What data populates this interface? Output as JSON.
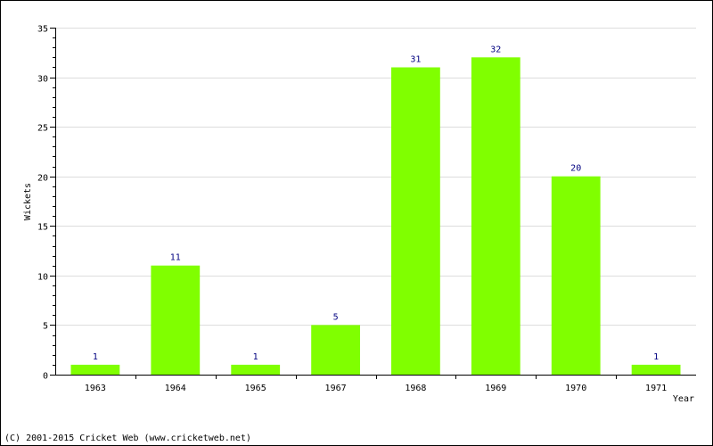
{
  "chart_data": {
    "type": "bar",
    "categories": [
      "1963",
      "1964",
      "1965",
      "1967",
      "1968",
      "1969",
      "1970",
      "1971"
    ],
    "values": [
      1,
      11,
      1,
      5,
      31,
      32,
      20,
      1
    ],
    "data_labels": [
      "1",
      "11",
      "1",
      "5",
      "31",
      "32",
      "20",
      "1"
    ],
    "xlabel": "Year",
    "ylabel": "Wickets",
    "ylim": [
      0,
      35
    ],
    "yticks": [
      0,
      5,
      10,
      15,
      20,
      25,
      30,
      35
    ],
    "ytick_labels": [
      "0",
      "5",
      "10",
      "15",
      "20",
      "25",
      "30",
      "35"
    ],
    "grid": true,
    "bar_color": "#80ff00",
    "label_color": "#000080",
    "grid_color": "#dddddd"
  },
  "footer": {
    "copyright": "(C) 2001-2015 Cricket Web (www.cricketweb.net)"
  }
}
